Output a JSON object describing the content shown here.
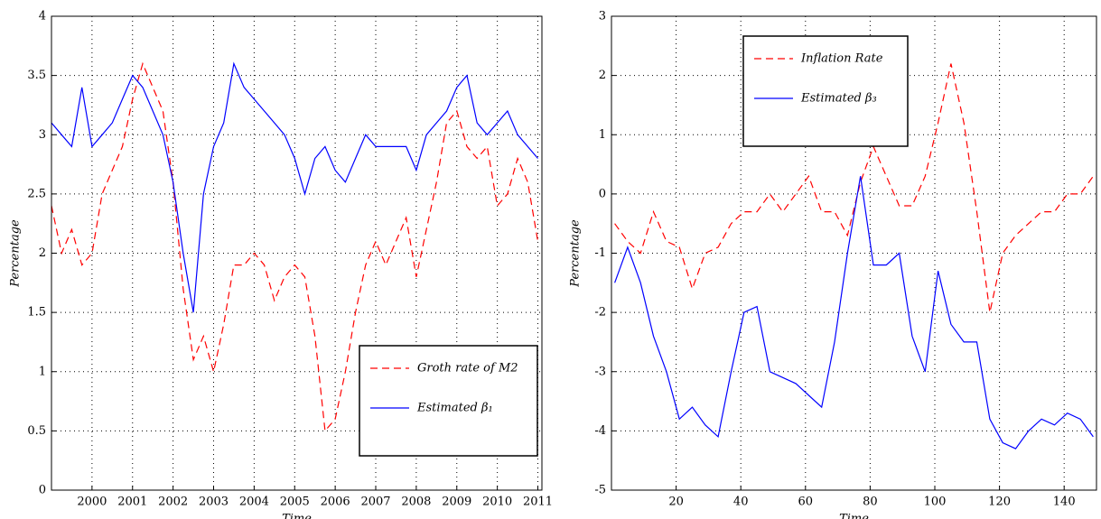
{
  "chart_data": [
    {
      "type": "line",
      "xlabel": "Time",
      "ylabel": "Percentage",
      "x": [
        1999.0,
        1999.25,
        1999.5,
        1999.75,
        2000.0,
        2000.25,
        2000.5,
        2000.75,
        2001.0,
        2001.25,
        2001.5,
        2001.75,
        2002.0,
        2002.25,
        2002.5,
        2002.75,
        2003.0,
        2003.25,
        2003.5,
        2003.75,
        2004.0,
        2004.25,
        2004.5,
        2004.75,
        2005.0,
        2005.25,
        2005.5,
        2005.75,
        2006.0,
        2006.25,
        2006.5,
        2006.75,
        2007.0,
        2007.25,
        2007.5,
        2007.75,
        2008.0,
        2008.25,
        2008.5,
        2008.75,
        2009.0,
        2009.25,
        2009.5,
        2009.75,
        2010.0,
        2010.25,
        2010.5,
        2010.75,
        2011.0
      ],
      "series": [
        {
          "name": "Groth rate of M2",
          "color": "#ff0000",
          "linestyle": "dashed",
          "values": [
            2.4,
            2.0,
            2.2,
            1.9,
            2.0,
            2.5,
            2.7,
            2.9,
            3.3,
            3.6,
            3.4,
            3.2,
            2.6,
            1.7,
            1.1,
            1.3,
            1.0,
            1.4,
            1.9,
            1.9,
            2.0,
            1.9,
            1.6,
            1.8,
            1.9,
            1.8,
            1.3,
            0.5,
            0.6,
            1.0,
            1.5,
            1.9,
            2.1,
            1.9,
            2.1,
            2.3,
            1.8,
            2.2,
            2.6,
            3.1,
            3.2,
            2.9,
            2.8,
            2.9,
            2.4,
            2.5,
            2.8,
            2.6,
            2.1
          ]
        },
        {
          "name": "Estimated β₁",
          "color": "#0000ff",
          "linestyle": "solid",
          "values": [
            3.1,
            3.0,
            2.9,
            3.4,
            2.9,
            3.0,
            3.1,
            3.3,
            3.5,
            3.4,
            3.2,
            3.0,
            2.6,
            2.0,
            1.5,
            2.5,
            2.9,
            3.1,
            3.6,
            3.4,
            3.3,
            3.2,
            3.1,
            3.0,
            2.8,
            2.5,
            2.8,
            2.9,
            2.7,
            2.6,
            2.8,
            3.0,
            2.9,
            2.9,
            2.9,
            2.9,
            2.7,
            3.0,
            3.1,
            3.2,
            3.4,
            3.5,
            3.1,
            3.0,
            3.1,
            3.2,
            3.0,
            2.9,
            2.8
          ]
        }
      ],
      "xlim": [
        1999.0,
        2011.1
      ],
      "ylim": [
        0,
        4
      ],
      "xticks": [
        2000,
        2001,
        2002,
        2003,
        2004,
        2005,
        2006,
        2007,
        2008,
        2009,
        2010,
        2011
      ],
      "yticks": [
        0,
        0.5,
        1,
        1.5,
        2,
        2.5,
        3,
        3.5,
        4
      ],
      "grid": true,
      "legend": "lower right"
    },
    {
      "type": "line",
      "xlabel": "Time",
      "ylabel": "Percentage",
      "x": [
        1,
        5,
        9,
        13,
        17,
        21,
        25,
        29,
        33,
        37,
        41,
        45,
        49,
        53,
        57,
        61,
        65,
        69,
        73,
        77,
        81,
        85,
        89,
        93,
        97,
        101,
        105,
        109,
        113,
        117,
        121,
        125,
        129,
        133,
        137,
        141,
        145,
        149
      ],
      "series": [
        {
          "name": "Inflation Rate",
          "color": "#ff0000",
          "linestyle": "dashed",
          "values": [
            -0.5,
            -0.8,
            -1.0,
            -0.3,
            -0.8,
            -0.9,
            -1.6,
            -1.0,
            -0.9,
            -0.5,
            -0.3,
            -0.3,
            0.0,
            -0.3,
            0.0,
            0.3,
            -0.3,
            -0.3,
            -0.7,
            0.2,
            0.8,
            0.3,
            -0.2,
            -0.2,
            0.3,
            1.2,
            2.2,
            1.2,
            -0.3,
            -2.0,
            -1.0,
            -0.7,
            -0.5,
            -0.3,
            -0.3,
            0.0,
            0.0,
            0.3
          ]
        },
        {
          "name": "Estimated β₃",
          "color": "#0000ff",
          "linestyle": "solid",
          "values": [
            -1.5,
            -0.9,
            -1.5,
            -2.4,
            -3.0,
            -3.8,
            -3.6,
            -3.9,
            -4.1,
            -3.0,
            -2.0,
            -1.9,
            -3.0,
            -3.1,
            -3.2,
            -3.4,
            -3.6,
            -2.5,
            -1.0,
            0.3,
            -1.2,
            -1.2,
            -1.0,
            -2.4,
            -3.0,
            -1.3,
            -2.2,
            -2.5,
            -2.5,
            -3.8,
            -4.2,
            -4.3,
            -4.0,
            -3.8,
            -3.9,
            -3.7,
            -3.8,
            -4.1
          ]
        }
      ],
      "xlim": [
        0,
        150
      ],
      "ylim": [
        -5,
        3
      ],
      "xticks": [
        20,
        40,
        60,
        80,
        100,
        120,
        140
      ],
      "yticks": [
        -5,
        -4,
        -3,
        -2,
        -1,
        0,
        1,
        2,
        3
      ],
      "grid": true,
      "legend": "upper left"
    }
  ]
}
